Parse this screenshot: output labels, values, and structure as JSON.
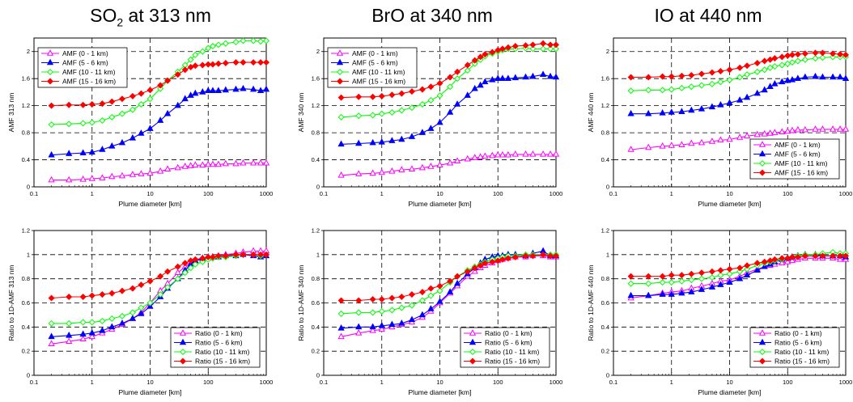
{
  "columns": [
    {
      "title_main": "SO",
      "title_sub": "2",
      "title_rest": " at 313 nm"
    },
    {
      "title_main": "BrO at 340 nm",
      "title_sub": "",
      "title_rest": ""
    },
    {
      "title_main": "IO at 440 nm",
      "title_sub": "",
      "title_rest": ""
    }
  ],
  "colors": {
    "s0": "#ff00ff",
    "s1": "#0000ff",
    "s2": "#00ff00",
    "s3": "#ff0000"
  },
  "xticks": [
    "0.1",
    "1",
    "10",
    "100",
    "1000"
  ],
  "chart_data": [
    {
      "type": "line",
      "xlabel": "Plume diameter [km]",
      "ylabel": "AMF 313 nm",
      "xscale": "log",
      "xlim": [
        0.1,
        1000
      ],
      "ylim": [
        0,
        2.2
      ],
      "yticks": [
        "0",
        "0.4",
        "0.8",
        "1.2",
        "1.6",
        "2"
      ],
      "legend_position": "top-left",
      "x": [
        0.2,
        0.4,
        0.7,
        1,
        1.5,
        2.2,
        3.3,
        5,
        7,
        10,
        15,
        20,
        30,
        40,
        50,
        60,
        80,
        100,
        120,
        150,
        200,
        300,
        400,
        600,
        800,
        1000
      ],
      "series": [
        {
          "name": "AMF (0 - 1 km)",
          "marker": "triangle-open",
          "values": [
            0.1,
            0.1,
            0.11,
            0.12,
            0.13,
            0.15,
            0.16,
            0.18,
            0.19,
            0.2,
            0.23,
            0.26,
            0.28,
            0.3,
            0.31,
            0.32,
            0.32,
            0.33,
            0.33,
            0.33,
            0.34,
            0.34,
            0.35,
            0.35,
            0.35,
            0.35
          ]
        },
        {
          "name": "AMF (5 - 6 km)",
          "marker": "triangle-filled",
          "values": [
            0.47,
            0.49,
            0.5,
            0.51,
            0.55,
            0.6,
            0.65,
            0.72,
            0.79,
            0.86,
            0.98,
            1.08,
            1.2,
            1.3,
            1.35,
            1.38,
            1.4,
            1.42,
            1.42,
            1.42,
            1.43,
            1.44,
            1.45,
            1.44,
            1.42,
            1.44
          ]
        },
        {
          "name": "AMF (10 - 11 km)",
          "marker": "diamond-open",
          "values": [
            0.92,
            0.93,
            0.94,
            0.95,
            0.98,
            1.03,
            1.08,
            1.14,
            1.22,
            1.3,
            1.45,
            1.57,
            1.7,
            1.8,
            1.88,
            1.95,
            2.0,
            2.05,
            2.08,
            2.1,
            2.12,
            2.14,
            2.16,
            2.16,
            2.15,
            2.16
          ]
        },
        {
          "name": "AMF (15 - 16 km)",
          "marker": "diamond-filled",
          "values": [
            1.2,
            1.21,
            1.21,
            1.22,
            1.23,
            1.26,
            1.3,
            1.34,
            1.38,
            1.43,
            1.5,
            1.57,
            1.66,
            1.73,
            1.77,
            1.79,
            1.8,
            1.81,
            1.81,
            1.82,
            1.83,
            1.84,
            1.84,
            1.84,
            1.84,
            1.84
          ]
        }
      ]
    },
    {
      "type": "line",
      "xlabel": "Plume diameter [km]",
      "ylabel": "AMF 340 nm",
      "xscale": "log",
      "xlim": [
        0.1,
        1000
      ],
      "ylim": [
        0,
        2.2
      ],
      "yticks": [
        "0",
        "0.4",
        "0.8",
        "1.2",
        "1.6",
        "2"
      ],
      "legend_position": "top-left",
      "x": [
        0.2,
        0.4,
        0.7,
        1,
        1.5,
        2.2,
        3.3,
        5,
        7,
        10,
        15,
        20,
        30,
        40,
        50,
        60,
        80,
        100,
        120,
        150,
        200,
        300,
        400,
        600,
        800,
        1000
      ],
      "series": [
        {
          "name": "AMF (0 - 1 km)",
          "marker": "triangle-open",
          "values": [
            0.17,
            0.19,
            0.2,
            0.21,
            0.23,
            0.25,
            0.26,
            0.28,
            0.3,
            0.32,
            0.35,
            0.38,
            0.41,
            0.43,
            0.44,
            0.45,
            0.46,
            0.47,
            0.47,
            0.47,
            0.48,
            0.48,
            0.48,
            0.48,
            0.48,
            0.48
          ]
        },
        {
          "name": "AMF (5 - 6 km)",
          "marker": "triangle-filled",
          "values": [
            0.63,
            0.64,
            0.65,
            0.66,
            0.68,
            0.7,
            0.74,
            0.8,
            0.86,
            0.95,
            1.1,
            1.22,
            1.35,
            1.45,
            1.5,
            1.55,
            1.58,
            1.6,
            1.6,
            1.6,
            1.61,
            1.62,
            1.63,
            1.66,
            1.63,
            1.62
          ]
        },
        {
          "name": "AMF (10 - 11 km)",
          "marker": "diamond-open",
          "values": [
            1.03,
            1.05,
            1.06,
            1.08,
            1.1,
            1.13,
            1.17,
            1.22,
            1.28,
            1.35,
            1.48,
            1.6,
            1.72,
            1.82,
            1.88,
            1.93,
            1.97,
            2.0,
            2.02,
            2.04,
            2.04,
            2.05,
            2.04,
            2.04,
            2.04,
            2.04
          ]
        },
        {
          "name": "AMF (15 - 16 km)",
          "marker": "diamond-filled",
          "values": [
            1.32,
            1.33,
            1.33,
            1.34,
            1.36,
            1.38,
            1.41,
            1.44,
            1.48,
            1.53,
            1.62,
            1.7,
            1.8,
            1.87,
            1.92,
            1.96,
            1.99,
            2.02,
            2.04,
            2.06,
            2.08,
            2.09,
            2.1,
            2.12,
            2.1,
            2.1
          ]
        }
      ]
    },
    {
      "type": "line",
      "xlabel": "Plume diameter [km]",
      "ylabel": "AMF 440 nm",
      "xscale": "log",
      "xlim": [
        0.1,
        1000
      ],
      "ylim": [
        0,
        2.2
      ],
      "yticks": [
        "0",
        "0.4",
        "0.8",
        "1.2",
        "1.6",
        "2"
      ],
      "legend_position": "bottom-right",
      "x": [
        0.2,
        0.4,
        0.7,
        1,
        1.5,
        2.2,
        3.3,
        5,
        7,
        10,
        15,
        20,
        30,
        40,
        50,
        60,
        80,
        100,
        120,
        150,
        200,
        300,
        400,
        600,
        800,
        1000
      ],
      "series": [
        {
          "name": "AMF (0 - 1 km)",
          "marker": "triangle-open",
          "values": [
            0.55,
            0.58,
            0.6,
            0.61,
            0.62,
            0.64,
            0.65,
            0.67,
            0.69,
            0.7,
            0.73,
            0.75,
            0.77,
            0.78,
            0.79,
            0.8,
            0.81,
            0.82,
            0.83,
            0.84,
            0.84,
            0.85,
            0.85,
            0.85,
            0.85,
            0.85
          ]
        },
        {
          "name": "AMF (5 - 6 km)",
          "marker": "triangle-filled",
          "values": [
            1.08,
            1.08,
            1.09,
            1.1,
            1.11,
            1.13,
            1.15,
            1.18,
            1.21,
            1.24,
            1.28,
            1.32,
            1.38,
            1.43,
            1.48,
            1.52,
            1.55,
            1.57,
            1.58,
            1.6,
            1.62,
            1.63,
            1.62,
            1.62,
            1.62,
            1.6
          ]
        },
        {
          "name": "AMF (10 - 11 km)",
          "marker": "diamond-open",
          "values": [
            1.42,
            1.43,
            1.43,
            1.44,
            1.46,
            1.48,
            1.5,
            1.52,
            1.55,
            1.58,
            1.62,
            1.66,
            1.7,
            1.73,
            1.76,
            1.78,
            1.8,
            1.82,
            1.84,
            1.86,
            1.88,
            1.9,
            1.91,
            1.92,
            1.92,
            1.92
          ]
        },
        {
          "name": "AMF (15 - 16 km)",
          "marker": "diamond-filled",
          "values": [
            1.62,
            1.62,
            1.63,
            1.63,
            1.64,
            1.65,
            1.67,
            1.69,
            1.71,
            1.73,
            1.76,
            1.79,
            1.83,
            1.86,
            1.88,
            1.9,
            1.92,
            1.94,
            1.95,
            1.96,
            1.97,
            1.98,
            1.98,
            1.97,
            1.96,
            1.95
          ]
        }
      ]
    },
    {
      "type": "line",
      "xlabel": "Plume diameter [km]",
      "ylabel": "Ratio to 1D-AMF 313 nm",
      "xscale": "log",
      "xlim": [
        0.1,
        1000
      ],
      "ylim": [
        0,
        1.2
      ],
      "yticks": [
        "0",
        "0.2",
        "0.4",
        "0.6",
        "0.8",
        "1",
        "1.2"
      ],
      "legend_position": "bottom-right",
      "x": [
        0.2,
        0.4,
        0.7,
        1,
        1.5,
        2.2,
        3.3,
        5,
        7,
        10,
        15,
        20,
        30,
        40,
        50,
        60,
        80,
        100,
        120,
        150,
        200,
        300,
        400,
        600,
        800,
        1000
      ],
      "series": [
        {
          "name": "Ratio (0 - 1 km)",
          "marker": "triangle-open",
          "values": [
            0.26,
            0.28,
            0.3,
            0.32,
            0.35,
            0.38,
            0.42,
            0.47,
            0.52,
            0.6,
            0.7,
            0.76,
            0.85,
            0.9,
            0.93,
            0.95,
            0.96,
            0.97,
            0.98,
            0.99,
            1.0,
            1.01,
            1.02,
            1.03,
            1.03,
            1.03
          ]
        },
        {
          "name": "Ratio (5 - 6 km)",
          "marker": "triangle-filled",
          "values": [
            0.32,
            0.33,
            0.34,
            0.35,
            0.37,
            0.4,
            0.43,
            0.47,
            0.51,
            0.57,
            0.65,
            0.72,
            0.8,
            0.87,
            0.92,
            0.95,
            0.97,
            0.98,
            0.98,
            0.98,
            0.99,
            0.99,
            1.0,
            0.99,
            0.98,
            0.99
          ]
        },
        {
          "name": "Ratio (10 - 11 km)",
          "marker": "diamond-open",
          "values": [
            0.43,
            0.43,
            0.44,
            0.44,
            0.45,
            0.47,
            0.49,
            0.52,
            0.56,
            0.6,
            0.67,
            0.73,
            0.8,
            0.85,
            0.89,
            0.92,
            0.94,
            0.96,
            0.97,
            0.98,
            0.98,
            0.99,
            1.0,
            1.0,
            0.99,
            1.0
          ]
        },
        {
          "name": "Ratio (15 - 16 km)",
          "marker": "diamond-filled",
          "values": [
            0.64,
            0.65,
            0.65,
            0.66,
            0.67,
            0.68,
            0.7,
            0.72,
            0.75,
            0.78,
            0.82,
            0.86,
            0.9,
            0.93,
            0.95,
            0.96,
            0.97,
            0.98,
            0.98,
            0.99,
            0.99,
            1.0,
            1.0,
            1.0,
            1.0,
            1.0
          ]
        }
      ]
    },
    {
      "type": "line",
      "xlabel": "Plume diameter [km]",
      "ylabel": "Ratio to 1D-AMF 340 nm",
      "xscale": "log",
      "xlim": [
        0.1,
        1000
      ],
      "ylim": [
        0,
        1.2
      ],
      "yticks": [
        "0",
        "0.2",
        "0.4",
        "0.6",
        "0.8",
        "1",
        "1.2"
      ],
      "legend_position": "bottom-right",
      "x": [
        0.2,
        0.4,
        0.7,
        1,
        1.5,
        2.2,
        3.3,
        5,
        7,
        10,
        15,
        20,
        30,
        40,
        50,
        60,
        80,
        100,
        120,
        150,
        200,
        300,
        400,
        600,
        800,
        1000
      ],
      "series": [
        {
          "name": "Ratio (0 - 1 km)",
          "marker": "triangle-open",
          "values": [
            0.32,
            0.35,
            0.37,
            0.38,
            0.4,
            0.42,
            0.44,
            0.48,
            0.53,
            0.6,
            0.68,
            0.74,
            0.82,
            0.86,
            0.89,
            0.91,
            0.93,
            0.95,
            0.96,
            0.97,
            0.98,
            0.98,
            0.99,
            0.99,
            0.98,
            0.98
          ]
        },
        {
          "name": "Ratio (5 - 6 km)",
          "marker": "triangle-filled",
          "values": [
            0.39,
            0.4,
            0.4,
            0.41,
            0.42,
            0.43,
            0.46,
            0.5,
            0.55,
            0.61,
            0.69,
            0.76,
            0.84,
            0.89,
            0.93,
            0.96,
            0.98,
            0.99,
            0.99,
            1.0,
            1.0,
            0.99,
            1.01,
            1.03,
            0.99,
            0.99
          ]
        },
        {
          "name": "Ratio (10 - 11 km)",
          "marker": "diamond-open",
          "values": [
            0.51,
            0.52,
            0.52,
            0.53,
            0.54,
            0.56,
            0.58,
            0.62,
            0.66,
            0.7,
            0.77,
            0.82,
            0.87,
            0.9,
            0.92,
            0.94,
            0.96,
            0.97,
            0.98,
            0.99,
            0.99,
            1.0,
            1.0,
            1.0,
            1.0,
            1.0
          ]
        },
        {
          "name": "Ratio (15 - 16 km)",
          "marker": "diamond-filled",
          "values": [
            0.62,
            0.62,
            0.63,
            0.63,
            0.64,
            0.65,
            0.67,
            0.69,
            0.72,
            0.74,
            0.78,
            0.82,
            0.86,
            0.89,
            0.91,
            0.93,
            0.94,
            0.95,
            0.96,
            0.97,
            0.98,
            0.99,
            0.99,
            1.0,
            0.99,
            0.99
          ]
        }
      ]
    },
    {
      "type": "line",
      "xlabel": "Plume diameter [km]",
      "ylabel": "Ratio to 1D-AMF 440 nm",
      "xscale": "log",
      "xlim": [
        0.1,
        1000
      ],
      "ylim": [
        0,
        1.2
      ],
      "yticks": [
        "0",
        "0.2",
        "0.4",
        "0.6",
        "0.8",
        "1",
        "1.2"
      ],
      "legend_position": "bottom-right",
      "x": [
        0.2,
        0.4,
        0.7,
        1,
        1.5,
        2.2,
        3.3,
        5,
        7,
        10,
        15,
        20,
        30,
        40,
        50,
        60,
        80,
        100,
        120,
        150,
        200,
        300,
        400,
        600,
        800,
        1000
      ],
      "series": [
        {
          "name": "Ratio (0 - 1 km)",
          "marker": "triangle-open",
          "values": [
            0.64,
            0.66,
            0.68,
            0.69,
            0.7,
            0.72,
            0.74,
            0.76,
            0.78,
            0.79,
            0.82,
            0.85,
            0.88,
            0.9,
            0.91,
            0.92,
            0.93,
            0.94,
            0.95,
            0.96,
            0.97,
            0.97,
            0.97,
            0.97,
            0.96,
            0.96
          ]
        },
        {
          "name": "Ratio (5 - 6 km)",
          "marker": "triangle-filled",
          "values": [
            0.66,
            0.66,
            0.67,
            0.67,
            0.68,
            0.69,
            0.71,
            0.73,
            0.75,
            0.77,
            0.8,
            0.83,
            0.87,
            0.9,
            0.92,
            0.94,
            0.96,
            0.97,
            0.98,
            0.99,
            1.0,
            1.0,
            0.99,
            0.99,
            0.99,
            0.98
          ]
        },
        {
          "name": "Ratio (10 - 11 km)",
          "marker": "diamond-open",
          "values": [
            0.76,
            0.76,
            0.77,
            0.77,
            0.78,
            0.79,
            0.8,
            0.81,
            0.83,
            0.84,
            0.86,
            0.88,
            0.91,
            0.93,
            0.94,
            0.95,
            0.96,
            0.97,
            0.98,
            0.99,
            1.0,
            1.0,
            1.01,
            1.02,
            1.01,
            1.01
          ]
        },
        {
          "name": "Ratio (15 - 16 km)",
          "marker": "diamond-filled",
          "values": [
            0.82,
            0.82,
            0.82,
            0.83,
            0.83,
            0.84,
            0.85,
            0.86,
            0.87,
            0.88,
            0.89,
            0.91,
            0.93,
            0.94,
            0.95,
            0.96,
            0.97,
            0.97,
            0.98,
            0.98,
            0.99,
            0.99,
            0.99,
            0.99,
            0.99,
            0.99
          ]
        }
      ]
    }
  ]
}
